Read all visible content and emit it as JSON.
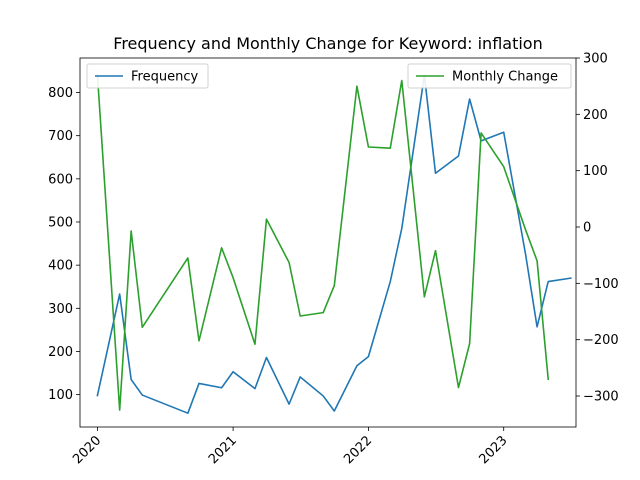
{
  "chart_data": {
    "type": "line",
    "title": "Frequency and Monthly Change for Keyword: inflation",
    "xlabel": "",
    "x_ticks": [
      "2020",
      "2021",
      "2022",
      "2023"
    ],
    "x_range": [
      "2019-11-15",
      "2023-07-15"
    ],
    "left_axis": {
      "ylabel": "",
      "ylim": [
        25,
        880
      ],
      "ticks": [
        100,
        200,
        300,
        400,
        500,
        600,
        700,
        800
      ]
    },
    "right_axis": {
      "ylabel": "",
      "ylim": [
        -355,
        300
      ],
      "ticks": [
        -300,
        -200,
        -100,
        0,
        100,
        200,
        300
      ]
    },
    "grid": false,
    "series": [
      {
        "name": "Frequency",
        "axis": "left",
        "color": "#1f77b4",
        "legend_position": "top-left",
        "points": [
          {
            "x": "2020-01-01",
            "y": 98
          },
          {
            "x": "2020-03-01",
            "y": 333
          },
          {
            "x": "2020-04-01",
            "y": 135
          },
          {
            "x": "2020-05-01",
            "y": 99
          },
          {
            "x": "2020-09-01",
            "y": 57
          },
          {
            "x": "2020-10-01",
            "y": 126
          },
          {
            "x": "2020-12-01",
            "y": 116
          },
          {
            "x": "2021-01-01",
            "y": 153
          },
          {
            "x": "2021-03-01",
            "y": 114
          },
          {
            "x": "2021-04-01",
            "y": 186
          },
          {
            "x": "2021-06-01",
            "y": 78
          },
          {
            "x": "2021-07-01",
            "y": 141
          },
          {
            "x": "2021-09-01",
            "y": 97
          },
          {
            "x": "2021-10-01",
            "y": 62
          },
          {
            "x": "2021-12-01",
            "y": 167
          },
          {
            "x": "2022-01-01",
            "y": 188
          },
          {
            "x": "2022-03-01",
            "y": 362
          },
          {
            "x": "2022-04-01",
            "y": 485
          },
          {
            "x": "2022-06-01",
            "y": 840
          },
          {
            "x": "2022-07-01",
            "y": 613
          },
          {
            "x": "2022-09-01",
            "y": 653
          },
          {
            "x": "2022-10-01",
            "y": 785
          },
          {
            "x": "2022-11-01",
            "y": 688
          },
          {
            "x": "2023-01-01",
            "y": 708
          },
          {
            "x": "2023-03-01",
            "y": 425
          },
          {
            "x": "2023-04-01",
            "y": 257
          },
          {
            "x": "2023-05-01",
            "y": 362
          },
          {
            "x": "2023-07-01",
            "y": 370
          }
        ]
      },
      {
        "name": "Monthly Change",
        "axis": "right",
        "color": "#2ca02c",
        "legend_position": "top-right",
        "points": [
          {
            "x": "2020-01-01",
            "y": 270
          },
          {
            "x": "2020-03-01",
            "y": -325
          },
          {
            "x": "2020-04-01",
            "y": -7
          },
          {
            "x": "2020-05-01",
            "y": -178
          },
          {
            "x": "2020-09-01",
            "y": -55
          },
          {
            "x": "2020-10-01",
            "y": -202
          },
          {
            "x": "2020-12-01",
            "y": -37
          },
          {
            "x": "2021-01-01",
            "y": -90
          },
          {
            "x": "2021-03-01",
            "y": -208
          },
          {
            "x": "2021-04-01",
            "y": 14
          },
          {
            "x": "2021-06-01",
            "y": -63
          },
          {
            "x": "2021-07-01",
            "y": -158
          },
          {
            "x": "2021-09-01",
            "y": -152
          },
          {
            "x": "2021-10-01",
            "y": -104
          },
          {
            "x": "2021-12-01",
            "y": 250
          },
          {
            "x": "2022-01-01",
            "y": 142
          },
          {
            "x": "2022-03-01",
            "y": 140
          },
          {
            "x": "2022-04-01",
            "y": 260
          },
          {
            "x": "2022-06-01",
            "y": -124
          },
          {
            "x": "2022-07-01",
            "y": -42
          },
          {
            "x": "2022-09-01",
            "y": -285
          },
          {
            "x": "2022-10-01",
            "y": -207
          },
          {
            "x": "2022-11-01",
            "y": 167
          },
          {
            "x": "2023-01-01",
            "y": 107
          },
          {
            "x": "2023-03-01",
            "y": -5
          },
          {
            "x": "2023-04-01",
            "y": -60
          },
          {
            "x": "2023-05-01",
            "y": -270
          }
        ]
      }
    ]
  }
}
